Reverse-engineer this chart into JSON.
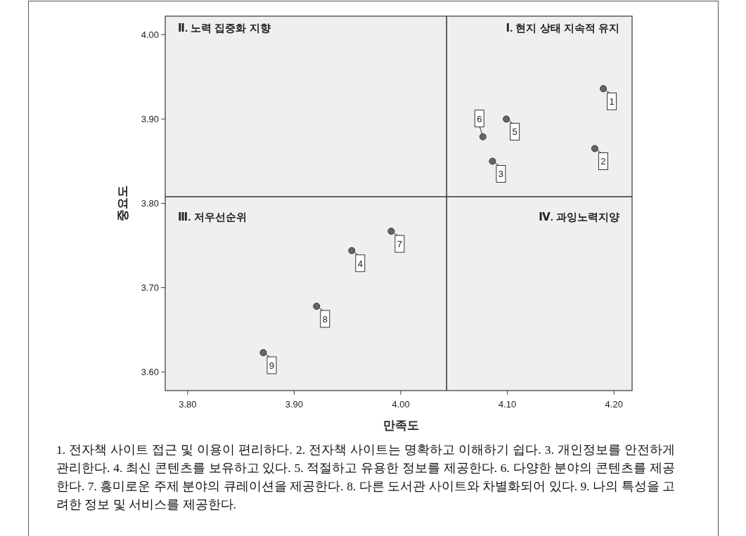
{
  "chart_data": {
    "type": "scatter",
    "xlabel": "만족도",
    "ylabel": "중요도",
    "x": [
      4.19,
      4.182,
      4.086,
      3.954,
      4.099,
      4.077,
      3.991,
      3.921,
      3.871
    ],
    "values": [
      3.936,
      3.865,
      3.85,
      3.744,
      3.9,
      3.879,
      3.767,
      3.678,
      3.623
    ],
    "color": "#666666",
    "marker": "circle",
    "grid": false,
    "xlim": [
      3.779,
      4.217
    ],
    "ylim": [
      3.578,
      4.022
    ],
    "xticks": [
      {
        "value": 3.8,
        "label": "3.80"
      },
      {
        "value": 3.9,
        "label": "3.90"
      },
      {
        "value": 4.0,
        "label": "4.00"
      },
      {
        "value": 4.1,
        "label": "4.10"
      },
      {
        "value": 4.2,
        "label": "4.20"
      }
    ],
    "yticks": [
      {
        "value": 3.6,
        "label": "3.60"
      },
      {
        "value": 3.7,
        "label": "3.70"
      },
      {
        "value": 3.8,
        "label": "3.80"
      },
      {
        "value": 3.9,
        "label": "3.90"
      },
      {
        "value": 4.0,
        "label": "4.00"
      }
    ],
    "ref_lines": [
      {
        "axis": "x",
        "value": 4.043,
        "label": null,
        "color": "#333333"
      },
      {
        "axis": "y",
        "value": 3.808,
        "label": null,
        "color": "#333333"
      }
    ],
    "annotations": [
      {
        "text": "1",
        "x": 4.19,
        "y": 3.936
      },
      {
        "text": "2",
        "x": 4.182,
        "y": 3.865
      },
      {
        "text": "3",
        "x": 4.086,
        "y": 3.85
      },
      {
        "text": "4",
        "x": 3.954,
        "y": 3.744
      },
      {
        "text": "5",
        "x": 4.099,
        "y": 3.9
      },
      {
        "text": "6",
        "x": 4.077,
        "y": 3.879
      },
      {
        "text": "7",
        "x": 3.991,
        "y": 3.767
      },
      {
        "text": "8",
        "x": 3.921,
        "y": 3.678
      },
      {
        "text": "9",
        "x": 3.871,
        "y": 3.623
      },
      "Ⅱ. 노력 집중화 지향",
      "Ⅰ. 현지 상태 지속적 유지",
      "Ⅲ. 저우선순위",
      "Ⅳ. 과잉노력지양",
      "1. 전자책 사이트 접근 및 이용이 편리하다. 2. 전자책 사이트는 명확하고 이해하기 쉽다. 3. 개인정보를 안전하게 관리한다. 4. 최신 콘텐츠를 보유하고 있다. 5. 적절하고 유용한 정보를 제공한다. 6. 다양한 분야의 콘텐츠를 제공한다. 7. 흥미로운 주제 분야의 큐레이션을 제공한다. 8. 다른 도서관 사이트와 차별화되어 있다. 9. 나의 특성을 고려한 정보 및 서비스를 제공한다."
    ]
  }
}
